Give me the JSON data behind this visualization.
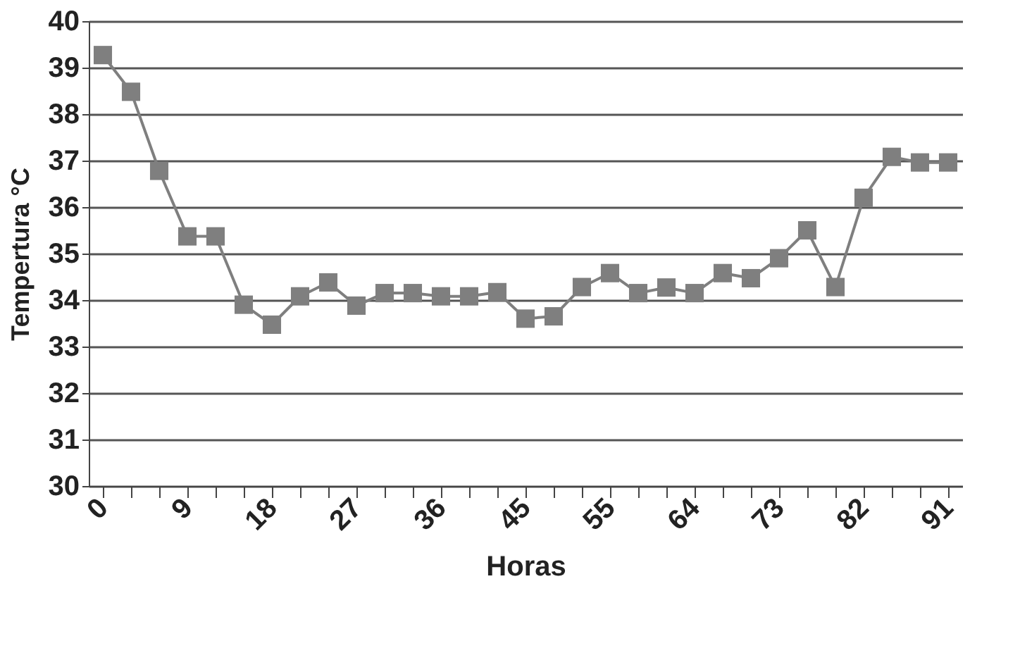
{
  "chart_data": {
    "type": "line",
    "xlabel": "Horas",
    "ylabel": "Tempertura °C",
    "categories": [
      "0",
      null,
      null,
      "9",
      null,
      null,
      "18",
      null,
      null,
      "27",
      null,
      null,
      "36",
      null,
      null,
      "45",
      null,
      null,
      "55",
      null,
      null,
      "64",
      null,
      null,
      "73",
      null,
      null,
      "82",
      null,
      null,
      "91"
    ],
    "series": [
      {
        "color": "#7f7f7f",
        "values": [
          39.27,
          38.48,
          36.78,
          35.37,
          35.37,
          33.9,
          33.47,
          34.08,
          34.38,
          33.88,
          34.15,
          34.15,
          34.08,
          34.08,
          34.17,
          33.6,
          33.65,
          34.28,
          34.58,
          34.15,
          34.27,
          34.15,
          34.58,
          34.47,
          34.9,
          35.5,
          34.28,
          36.2,
          37.08,
          36.96,
          36.96
        ]
      }
    ],
    "ylim": [
      30,
      40
    ],
    "yticks": [
      30,
      31,
      32,
      33,
      34,
      35,
      36,
      37,
      38,
      39,
      40
    ],
    "grid": "y",
    "marker": "square",
    "line_style": "solid"
  }
}
